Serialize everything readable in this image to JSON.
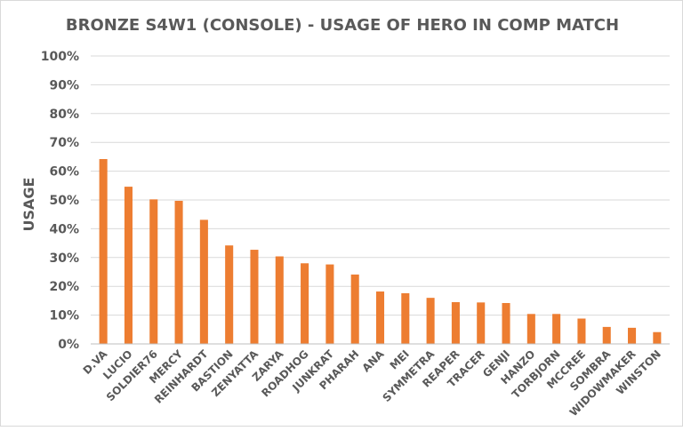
{
  "chart_data": {
    "type": "bar",
    "title": "BRONZE S4W1 (CONSOLE) - USAGE OF HERO IN COMP MATCH",
    "xlabel": "",
    "ylabel": "USAGE",
    "ylim": [
      0,
      100
    ],
    "y_ticks": [
      "0%",
      "10%",
      "20%",
      "30%",
      "40%",
      "50%",
      "60%",
      "70%",
      "80%",
      "90%",
      "100%"
    ],
    "grid": true,
    "bar_color": "#ED7D31",
    "categories": [
      "D.VA",
      "LUCIO",
      "SOLDIER76",
      "MERCY",
      "REINHARDT",
      "BASTION",
      "ZENYATTA",
      "ZARYA",
      "ROADHOG",
      "JUNKRAT",
      "PHARAH",
      "ANA",
      "MEI",
      "SYMMETRA",
      "REAPER",
      "TRACER",
      "GENJI",
      "HANZO",
      "TORBJORN",
      "MCCREE",
      "SOMBRA",
      "WIDOWMAKER",
      "WINSTON"
    ],
    "values": [
      64.2,
      54.6,
      50.2,
      49.7,
      43.1,
      34.2,
      32.7,
      30.4,
      28.0,
      27.6,
      24.1,
      18.2,
      17.6,
      16.0,
      14.5,
      14.4,
      14.2,
      10.4,
      10.4,
      8.8,
      5.9,
      5.6,
      4.1
    ]
  }
}
